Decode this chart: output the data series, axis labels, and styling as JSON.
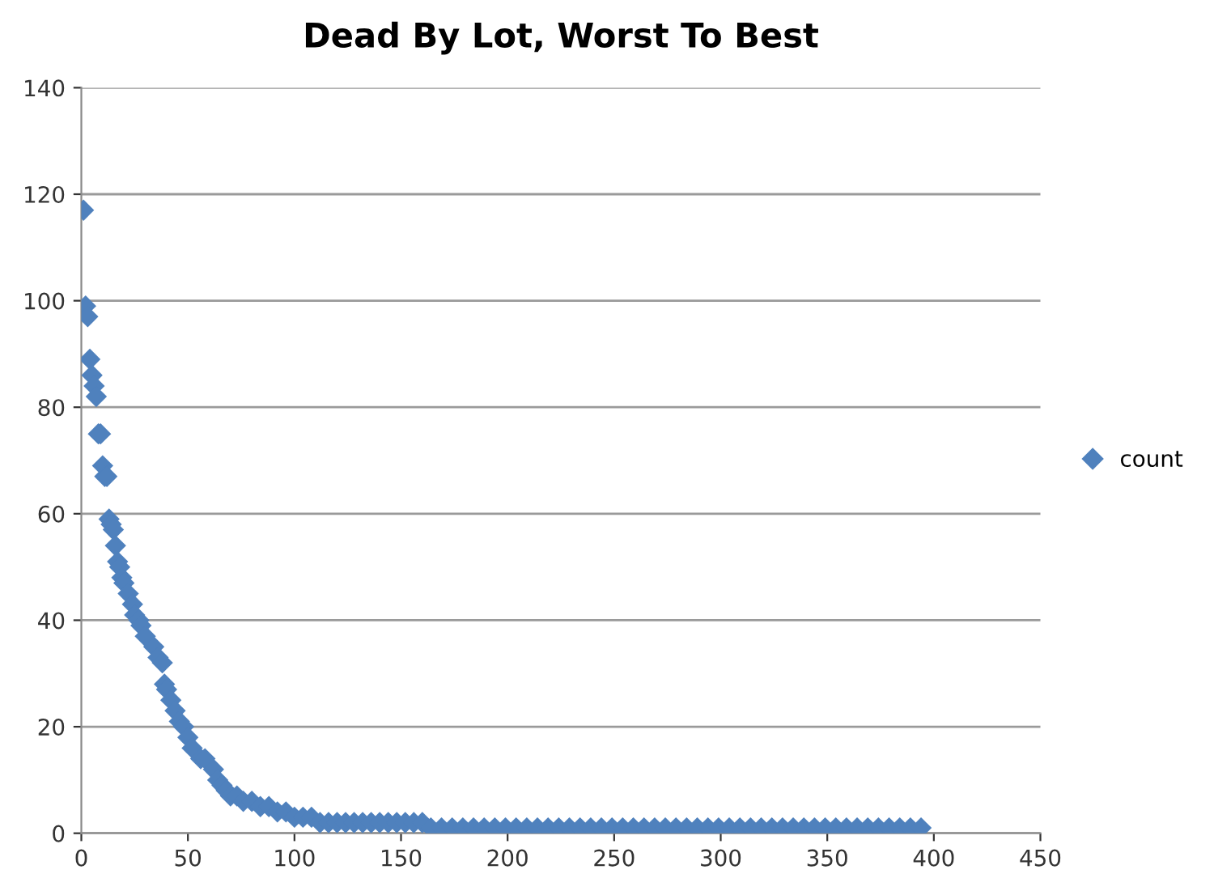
{
  "chart_data": {
    "type": "scatter",
    "title": "Dead By Lot, Worst To Best",
    "series": [
      {
        "name": "count",
        "color": "#4f81bd",
        "x": [
          1,
          2,
          3,
          4,
          5,
          6,
          7,
          8,
          9,
          10,
          11,
          12,
          13,
          14,
          15,
          16,
          17,
          18,
          19,
          20,
          22,
          24,
          25,
          27,
          28,
          30,
          34,
          36,
          38,
          39,
          40,
          42,
          44,
          46,
          48,
          50,
          52,
          56,
          58,
          62,
          64,
          66,
          68,
          70,
          73,
          76,
          80,
          84,
          88,
          92,
          96,
          100,
          104,
          108,
          112,
          116,
          120,
          124,
          128,
          132,
          136,
          140,
          144,
          148,
          152,
          156,
          160,
          164,
          169,
          174,
          179,
          184,
          189,
          194,
          199,
          204,
          209,
          214,
          219,
          224,
          229,
          234,
          239,
          244,
          249,
          254,
          259,
          264,
          269,
          274,
          279,
          284,
          289,
          294,
          299,
          304,
          309,
          314,
          319,
          324,
          329,
          334,
          339,
          344,
          349,
          354,
          359,
          364,
          369,
          374,
          379,
          384,
          389,
          394
        ],
        "values": [
          117,
          99,
          97,
          89,
          86,
          84,
          82,
          75,
          75,
          69,
          67,
          67,
          59,
          58,
          57,
          54,
          51,
          50,
          48,
          47,
          45,
          43,
          41,
          40,
          39,
          37,
          35,
          33,
          32,
          28,
          27,
          25,
          23,
          21,
          20,
          18,
          16,
          14,
          14,
          12,
          10,
          9,
          8,
          7,
          7,
          6,
          6,
          5,
          5,
          4,
          4,
          3,
          3,
          3,
          2,
          2,
          2,
          2,
          2,
          2,
          2,
          2,
          2,
          2,
          2,
          2,
          2,
          1,
          1,
          1,
          1,
          1,
          1,
          1,
          1,
          1,
          1,
          1,
          1,
          1,
          1,
          1,
          1,
          1,
          1,
          1,
          1,
          1,
          1,
          1,
          1,
          1,
          1,
          1,
          1,
          1,
          1,
          1,
          1,
          1,
          1,
          1,
          1,
          1,
          1,
          1,
          1,
          1,
          1,
          1,
          1,
          1,
          1,
          1
        ]
      }
    ],
    "xlim": [
      0,
      450
    ],
    "xticks": [
      0,
      50,
      100,
      150,
      200,
      250,
      300,
      350,
      400,
      450
    ],
    "ylim": [
      0,
      140
    ],
    "yticks": [
      0,
      20,
      40,
      60,
      80,
      100,
      120,
      140
    ],
    "grid": "y",
    "legend": "right",
    "marker": "diamond"
  }
}
